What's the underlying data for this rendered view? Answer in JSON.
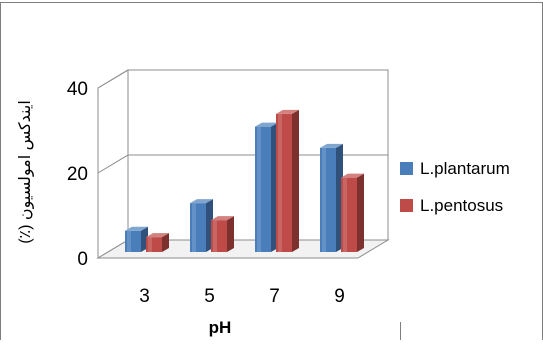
{
  "chart_data": {
    "type": "bar",
    "categories": [
      "3",
      "5",
      "7",
      "9"
    ],
    "series": [
      {
        "name": "L.plantarum",
        "values": [
          5,
          11.5,
          29.5,
          24.5
        ],
        "color": "#4A7EBB"
      },
      {
        "name": "L.pentosus",
        "values": [
          3.5,
          7.5,
          32.5,
          17.5
        ],
        "color": "#BE4B48"
      }
    ],
    "xlabel": "pH",
    "ylabel": "ایندکس امولسیون (٪)",
    "yticks": [
      "0",
      "20",
      "40"
    ],
    "ylim": [
      0,
      40
    ],
    "grid": true,
    "legend_position": "right",
    "style": "3d-clustered-column"
  }
}
